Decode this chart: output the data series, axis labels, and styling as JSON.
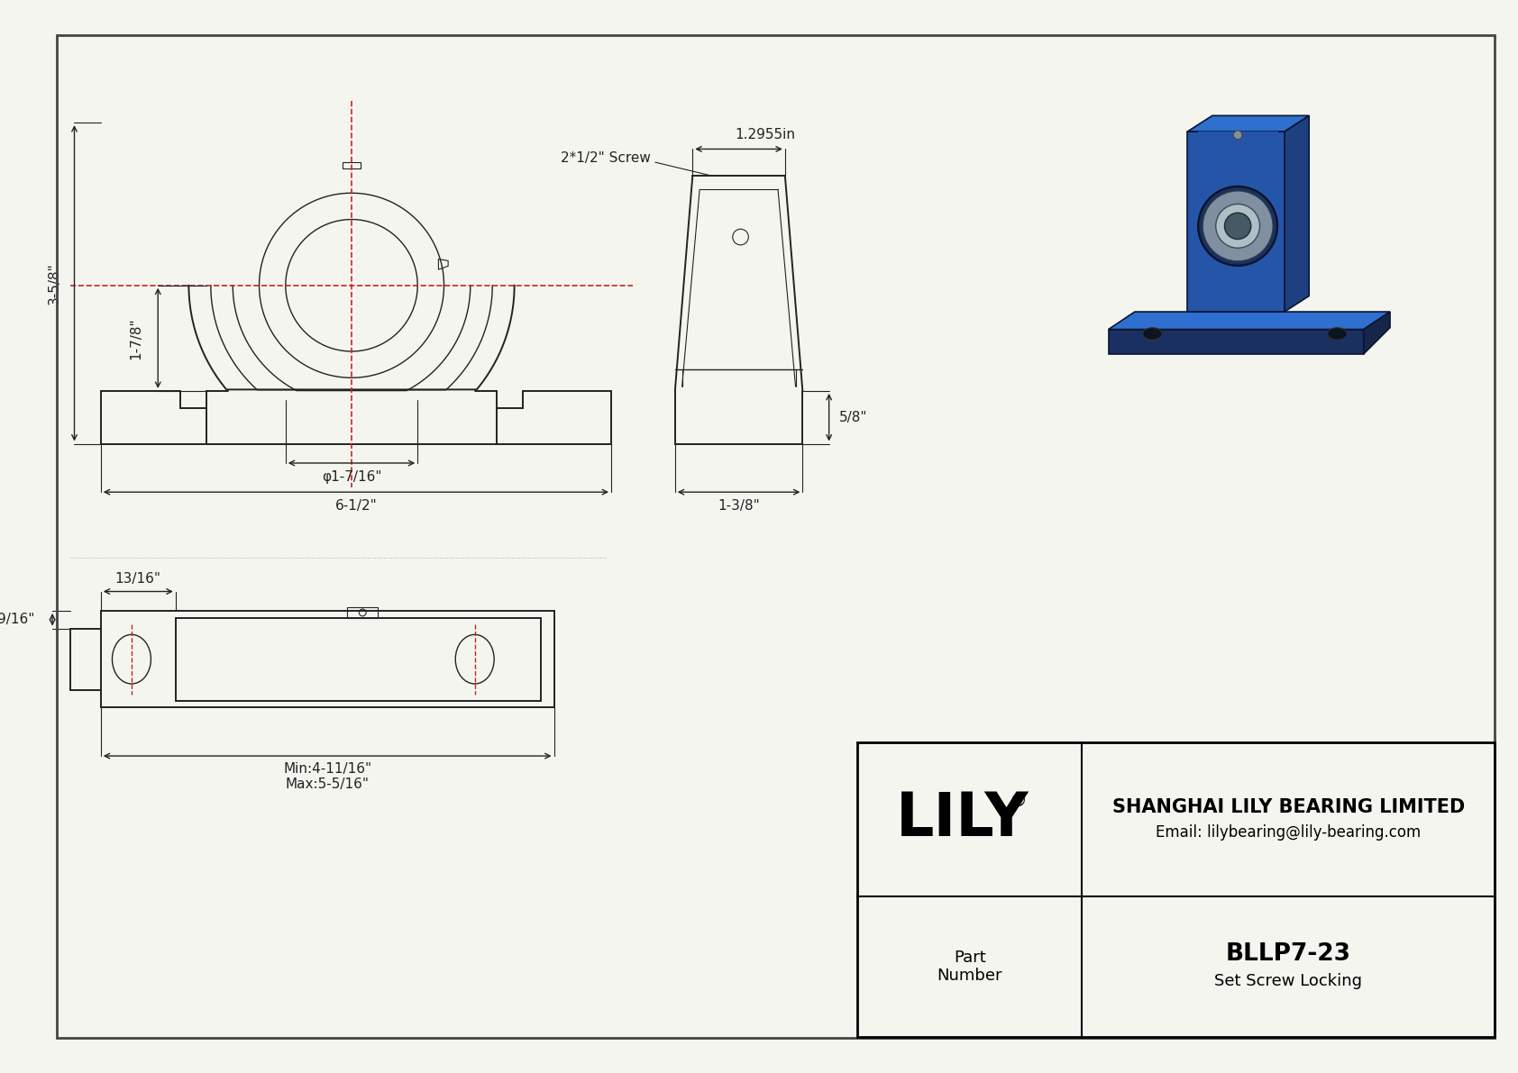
{
  "bg_color": "#f5f5f0",
  "line_color": "#222222",
  "red_color": "#cc2222",
  "title_block": {
    "company": "SHANGHAI LILY BEARING LIMITED",
    "email": "Email: lilybearing@lily-bearing.com",
    "part_label": "Part\nNumber",
    "part_number": "BLLP7-23",
    "locking": "Set Screw Locking",
    "brand": "LILY"
  },
  "dimensions": {
    "height_3_5_8": "3-5/8\"",
    "height_1_7_8": "1-7/8\"",
    "width_6_1_2": "6-1/2\"",
    "dia_1_7_16": "φ1-7/16\"",
    "side_5_8": "5/8\"",
    "side_1_3_8": "1-3/8\"",
    "side_1_2955": "1.2955in",
    "screw_label": "2*1/2\" Screw",
    "top_13_16": "13/16\"",
    "top_9_16": "9/16\"",
    "top_min": "Min:4-11/16\"",
    "top_max": "Max:5-5/16\""
  }
}
